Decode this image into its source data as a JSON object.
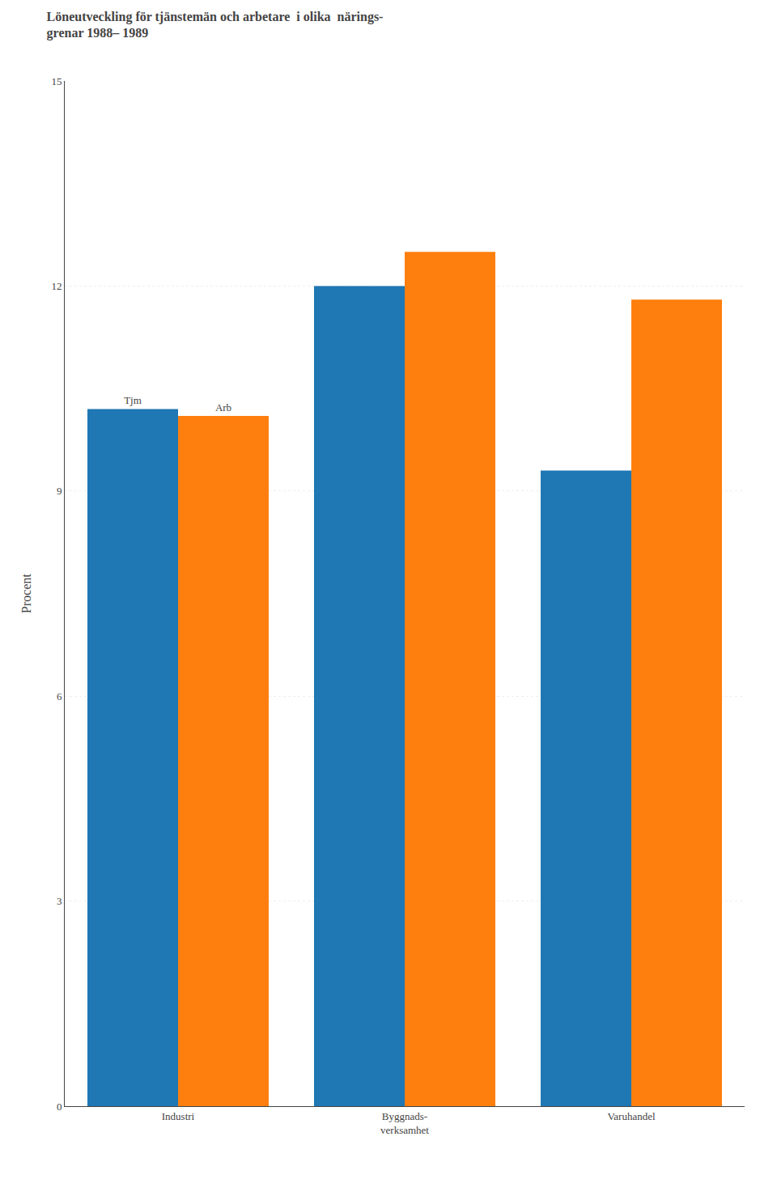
{
  "chart_data": {
    "type": "bar",
    "title": "Löneutveckling för tjänstemän och arbetare  i olika  närings-\ngrenar 1988– 1989",
    "y_label": "Procent",
    "categories": [
      "Industri",
      "Byggnads-\nverksamhet",
      "Varuhandel"
    ],
    "series": [
      {
        "name": "Tjm",
        "values": [
          10.2,
          12.0,
          9.3
        ]
      },
      {
        "name": "Arb",
        "values": [
          10.1,
          12.5,
          11.8
        ]
      }
    ],
    "annotations": [
      {
        "text": "Tjm",
        "series": "Tjm",
        "category": "Industri"
      },
      {
        "text": "Arb",
        "series": "Arb",
        "category": "Industri"
      }
    ],
    "ylim": [
      0,
      15
    ],
    "yticks": [
      0,
      3,
      6,
      9,
      12,
      15
    ],
    "grid": true
  }
}
